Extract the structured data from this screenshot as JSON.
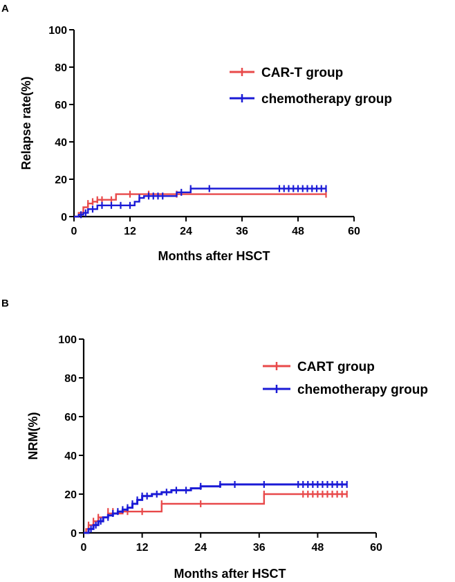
{
  "panels": [
    {
      "letter": "A",
      "title": "",
      "xlabel": "Months after HSCT",
      "ylabel": "Relapse rate(%)",
      "xlim": [
        0,
        60
      ],
      "ylim": [
        0,
        100
      ],
      "xticks": [
        0,
        12,
        24,
        36,
        48,
        60
      ],
      "yticks": [
        0,
        20,
        40,
        60,
        80,
        100
      ],
      "legend_position": "upper-right",
      "legend": [
        {
          "label": "CAR-T group",
          "color": "#e8494a"
        },
        {
          "label": "chemotherapy group",
          "color": "#1a1ad6"
        }
      ]
    },
    {
      "letter": "B",
      "title": "",
      "xlabel": "Months after HSCT",
      "ylabel": "NRM(%)",
      "xlim": [
        0,
        60
      ],
      "ylim": [
        0,
        100
      ],
      "xticks": [
        0,
        12,
        24,
        36,
        48,
        60
      ],
      "yticks": [
        0,
        20,
        40,
        60,
        80,
        100
      ],
      "legend_position": "upper-right",
      "legend": [
        {
          "label": "CART group",
          "color": "#e8494a"
        },
        {
          "label": "chemotherapy group",
          "color": "#1a1ad6"
        }
      ]
    }
  ],
  "chart_data": [
    {
      "type": "line",
      "subtype": "step",
      "title": "",
      "xlabel": "Months after HSCT",
      "ylabel": "Relapse rate(%)",
      "xlim": [
        0,
        60
      ],
      "ylim": [
        0,
        100
      ],
      "series": [
        {
          "name": "CAR-T group",
          "color": "#e8494a",
          "x": [
            0,
            1,
            2,
            3,
            4,
            5,
            9,
            54
          ],
          "y": [
            0,
            2,
            5,
            7,
            8,
            9,
            12,
            12
          ],
          "censor_x": [
            3,
            4,
            5,
            6,
            8,
            12,
            16,
            22,
            54
          ],
          "censor_y": [
            7,
            8,
            9,
            9,
            9,
            12,
            12,
            12,
            12
          ]
        },
        {
          "name": "chemotherapy group",
          "color": "#1a1ad6",
          "x": [
            0,
            1,
            2,
            3,
            5,
            13,
            14,
            15,
            22,
            25,
            54
          ],
          "y": [
            0,
            1,
            2,
            4,
            6,
            8,
            10,
            11,
            13,
            15,
            15
          ],
          "censor_x": [
            1.5,
            2.5,
            4,
            6,
            8,
            10,
            12,
            14,
            16,
            17,
            18,
            19,
            23,
            25,
            29,
            44,
            45,
            46,
            47,
            48,
            49,
            50,
            51,
            52,
            53,
            54
          ],
          "censor_y": [
            1,
            2,
            4,
            6,
            6,
            6,
            6,
            10,
            11,
            11,
            11,
            11,
            13,
            15,
            15,
            15,
            15,
            15,
            15,
            15,
            15,
            15,
            15,
            15,
            15,
            15
          ]
        }
      ]
    },
    {
      "type": "line",
      "subtype": "step",
      "title": "",
      "xlabel": "Months after HSCT",
      "ylabel": "NRM(%)",
      "xlim": [
        0,
        60
      ],
      "ylim": [
        0,
        100
      ],
      "series": [
        {
          "name": "CART group",
          "color": "#e8494a",
          "x": [
            0,
            0.5,
            1,
            2,
            3,
            5,
            8,
            16,
            37,
            54
          ],
          "y": [
            0,
            2,
            4,
            6,
            8,
            10,
            11,
            15,
            20,
            20
          ],
          "censor_x": [
            1,
            2,
            3,
            5,
            6,
            9,
            12,
            16,
            24,
            37,
            45,
            46,
            47,
            48,
            49,
            50,
            51,
            52,
            53,
            54
          ],
          "censor_y": [
            4,
            6,
            8,
            11,
            11,
            11,
            11,
            15,
            15,
            20,
            20,
            20,
            20,
            20,
            20,
            20,
            20,
            20,
            20,
            20
          ]
        },
        {
          "name": "chemotherapy group",
          "color": "#1a1ad6",
          "x": [
            0,
            1,
            2,
            3,
            4,
            5,
            6,
            7,
            8,
            9,
            10,
            11,
            12,
            14,
            16,
            18,
            20,
            22,
            24,
            28,
            54
          ],
          "y": [
            0,
            2,
            4,
            6,
            8,
            9,
            10,
            11,
            12,
            13,
            15,
            17,
            19,
            20,
            21,
            22,
            22,
            23,
            24,
            25,
            25
          ],
          "censor_x": [
            1.5,
            2.5,
            3.5,
            5,
            6,
            7,
            8,
            9,
            10,
            11,
            12,
            13,
            15,
            17,
            19,
            21,
            24,
            28,
            31,
            37,
            44,
            45,
            46,
            47,
            48,
            49,
            50,
            51,
            52,
            53,
            54
          ],
          "censor_y": [
            2,
            4,
            6,
            8,
            10,
            11,
            12,
            13,
            15,
            17,
            19,
            19,
            20,
            21,
            22,
            22,
            24,
            25,
            25,
            25,
            25,
            25,
            25,
            25,
            25,
            25,
            25,
            25,
            25,
            25,
            25
          ]
        }
      ]
    }
  ]
}
